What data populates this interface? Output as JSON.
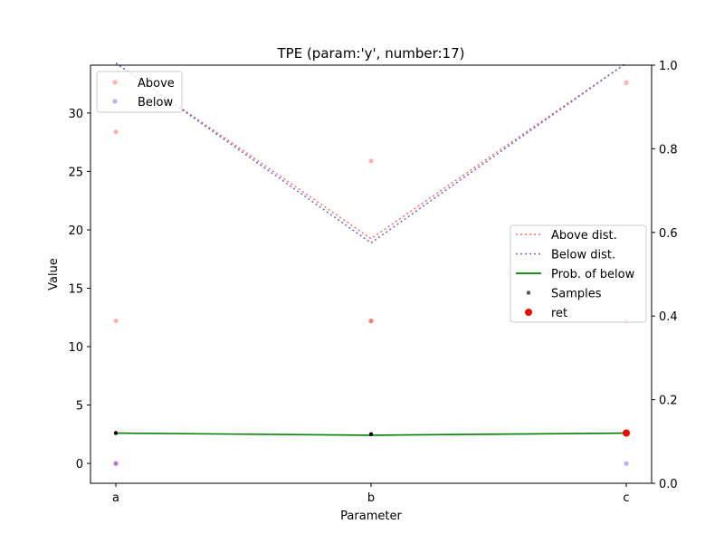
{
  "chart_data": {
    "type": "line",
    "title": "TPE (param:'y', number:17)",
    "xlabel": "Parameter",
    "ylabel": "Value",
    "categories": [
      "a",
      "b",
      "c"
    ],
    "ylim": [
      -1.7,
      34.1
    ],
    "y2lim": [
      0.0,
      1.0
    ],
    "yticks": [
      0,
      5,
      10,
      15,
      20,
      25,
      30
    ],
    "y2ticks": [
      0.0,
      0.2,
      0.4,
      0.6,
      0.8,
      1.0
    ],
    "grid": false,
    "scatter_above": {
      "name": "Above",
      "color": "#ff0000",
      "points": [
        {
          "x": "a",
          "y": 28.4
        },
        {
          "x": "a",
          "y": 12.2
        },
        {
          "x": "a",
          "y": 0.0
        },
        {
          "x": "b",
          "y": 25.9
        },
        {
          "x": "b",
          "y": 12.2
        },
        {
          "x": "b",
          "y": 12.2
        },
        {
          "x": "c",
          "y": 32.6
        },
        {
          "x": "c",
          "y": 12.2
        }
      ]
    },
    "scatter_below": {
      "name": "Below",
      "color": "#0000ff",
      "points": [
        {
          "x": "a",
          "y": 0.0
        },
        {
          "x": "c",
          "y": 0.0
        }
      ]
    },
    "samples": {
      "name": "Samples",
      "color": "#000000",
      "points": [
        {
          "x": "a",
          "y": 2.6
        },
        {
          "x": "b",
          "y": 2.5
        },
        {
          "x": "c",
          "y": 2.6
        }
      ]
    },
    "ret": {
      "name": "ret",
      "color": "#ff0000",
      "points": [
        {
          "x": "c",
          "y": 2.6
        }
      ]
    },
    "above_dist": {
      "name": "Above dist.",
      "color": "#ff6666",
      "axis": "y2",
      "values": [
        1.005,
        0.585,
        1.005
      ]
    },
    "below_dist": {
      "name": "Below dist.",
      "color": "#6666cc",
      "axis": "y2",
      "values": [
        1.005,
        0.575,
        1.005
      ]
    },
    "prob_below": {
      "name": "Prob. of below",
      "color": "#008000",
      "axis": "y2",
      "values": [
        0.12,
        0.115,
        0.12
      ]
    },
    "legend1": [
      "Above",
      "Below"
    ],
    "legend2": [
      "Above dist.",
      "Below dist.",
      "Prob. of below",
      "Samples",
      "ret"
    ],
    "legend1_position": "upper-left",
    "legend2_position": "center-right"
  }
}
